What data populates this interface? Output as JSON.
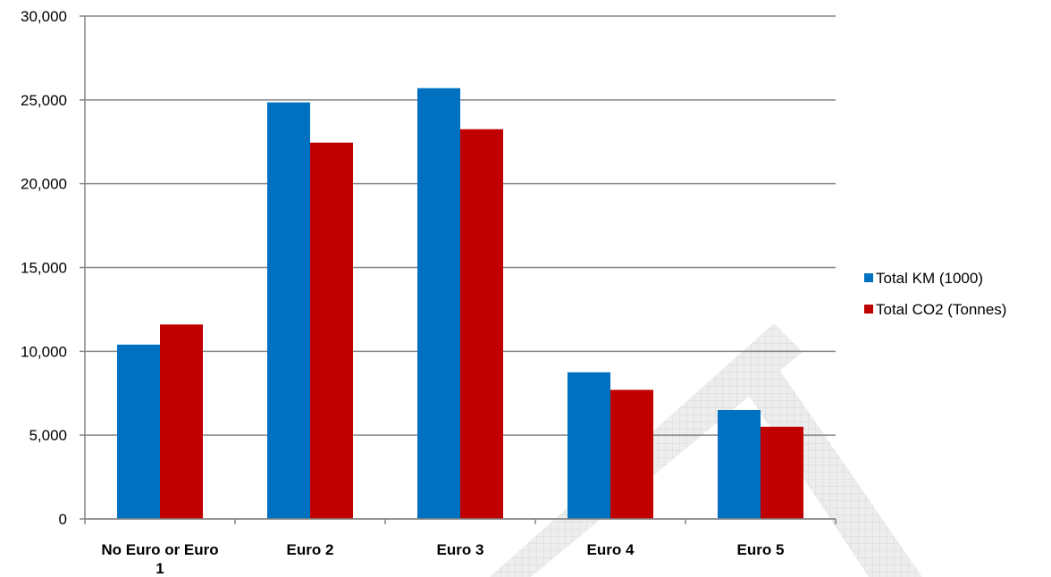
{
  "chart_data": {
    "type": "bar",
    "title": "",
    "xlabel": "",
    "ylabel": "",
    "categories": [
      "No Euro or Euro 1",
      "Euro 2",
      "Euro 3",
      "Euro 4",
      "Euro 5"
    ],
    "category_lines": [
      [
        "No Euro or Euro",
        "1"
      ],
      [
        "Euro 2"
      ],
      [
        "Euro 3"
      ],
      [
        "Euro 4"
      ],
      [
        "Euro 5"
      ]
    ],
    "series": [
      {
        "name": "Total KM (1000)",
        "color": "#0070C0",
        "values": [
          10400,
          24850,
          25700,
          8750,
          6500
        ]
      },
      {
        "name": "Total CO2 (Tonnes)",
        "color": "#C00000",
        "values": [
          11600,
          22450,
          23250,
          7700,
          5500
        ]
      }
    ],
    "ylim": [
      0,
      30000
    ],
    "yticks": [
      0,
      5000,
      10000,
      15000,
      20000,
      25000,
      30000
    ],
    "ytick_labels": [
      "0",
      "5,000",
      "10,000",
      "15,000",
      "20,000",
      "25,000",
      "30,000"
    ],
    "grid": true,
    "legend": "right"
  }
}
